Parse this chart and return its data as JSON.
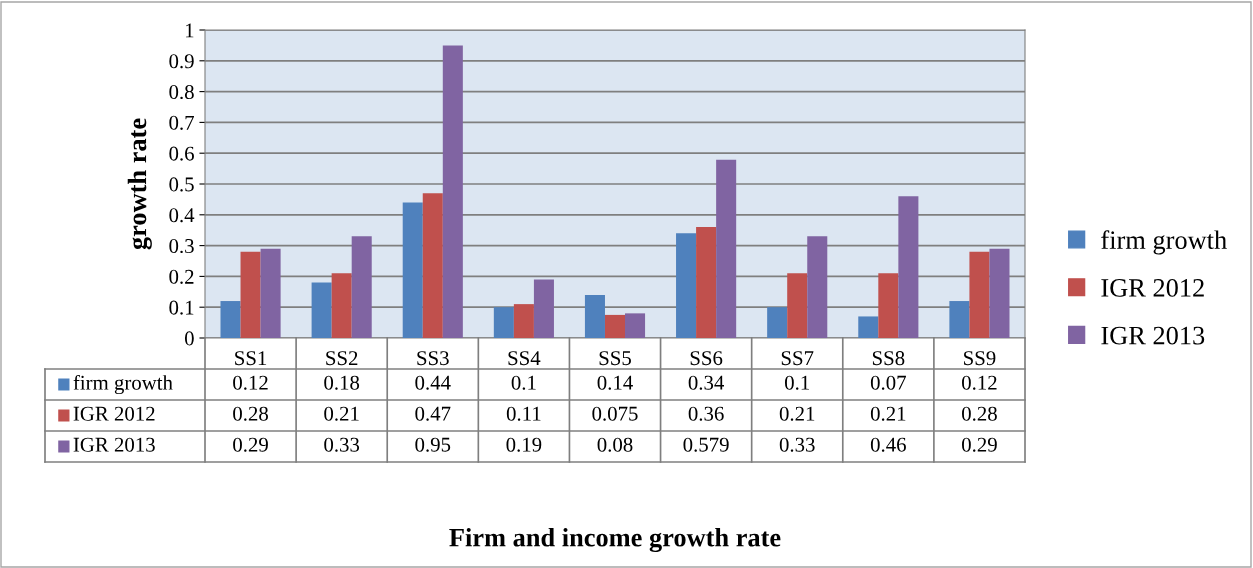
{
  "chart_data": {
    "type": "bar",
    "annotations": [
      "Firm and income growth rate"
    ],
    "ylabel": "growth rate",
    "categories": [
      "SS1",
      "SS2",
      "SS3",
      "SS4",
      "SS5",
      "SS6",
      "SS7",
      "SS8",
      "SS9"
    ],
    "series": [
      {
        "name": "firm growth",
        "color": "#4f81bd",
        "values": [
          0.12,
          0.18,
          0.44,
          0.1,
          0.14,
          0.34,
          0.1,
          0.07,
          0.12
        ]
      },
      {
        "name": "IGR 2012",
        "color": "#c0504d",
        "values": [
          0.28,
          0.21,
          0.47,
          0.11,
          0.075,
          0.36,
          0.21,
          0.21,
          0.28
        ]
      },
      {
        "name": "IGR 2013",
        "color": "#8064a2",
        "values": [
          0.29,
          0.33,
          0.95,
          0.19,
          0.08,
          0.579,
          0.33,
          0.46,
          0.29
        ]
      }
    ],
    "ylim": [
      0,
      1
    ],
    "yticks": [
      0,
      0.1,
      0.2,
      0.3,
      0.4,
      0.5,
      0.6,
      0.7,
      0.8,
      0.9,
      1
    ],
    "grid": "y",
    "legend": "right",
    "data_labels": true
  }
}
